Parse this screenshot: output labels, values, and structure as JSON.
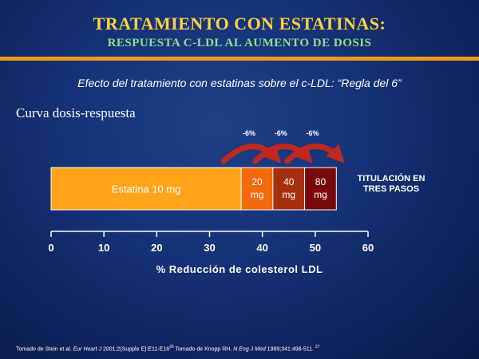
{
  "header": {
    "title": "TRATAMIENTO CON ESTATINAS:",
    "subtitle": "RESPUESTA C-LDL AL AUMENTO DE DOSIS"
  },
  "effect_text": "Efecto del tratamiento con estatinas sobre el c-LDL: “Regla del 6”",
  "curve_label": "Curva dosis-respuesta",
  "side_note": {
    "line1": "TITULACIÓN EN",
    "line2": "TRES PASOS"
  },
  "footer": {
    "part1": "Tomado de Stein et al. ",
    "journal1": "Eur Heart J",
    "part2": " 2001;2(Supple E):E11-E16",
    "ref1": "26",
    "part3": " Tomado de Knopp RH. ",
    "journal2": "N Eng J Med",
    "part4": " 1999;341:498-511. ",
    "ref2": "27"
  },
  "colors": {
    "title": "#ffd23c",
    "subtitle": "#8fe089",
    "rule": "#f59a16",
    "arrow": "#c0281e"
  },
  "chart_data": {
    "type": "bar",
    "xlabel": "% Reducción de colesterol LDL",
    "xlim": [
      0,
      60
    ],
    "xticks": [
      0,
      10,
      20,
      30,
      40,
      50,
      60
    ],
    "segments": [
      {
        "label": "Estatina 10 mg",
        "start": 0,
        "end": 36,
        "color": "#ffa41a"
      },
      {
        "label": "20 mg",
        "label_top": "20",
        "label_bottom": "mg",
        "start": 36,
        "end": 42,
        "color": "#f26a0c"
      },
      {
        "label": "40 mg",
        "label_top": "40",
        "label_bottom": "mg",
        "start": 42,
        "end": 48,
        "color": "#a6300e"
      },
      {
        "label": "80 mg",
        "label_top": "80",
        "label_bottom": "mg",
        "start": 48,
        "end": 54,
        "color": "#7a0a0a"
      }
    ],
    "annotations": [
      {
        "text": "-6%",
        "from": 36,
        "to": 42
      },
      {
        "text": "-6%",
        "from": 42,
        "to": 48
      },
      {
        "text": "-6%",
        "from": 48,
        "to": 54
      }
    ]
  }
}
